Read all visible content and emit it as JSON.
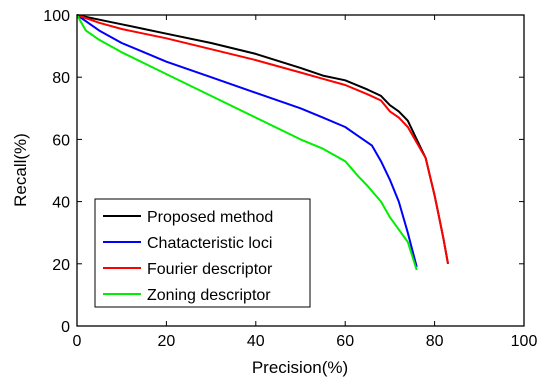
{
  "chart_data": {
    "type": "line",
    "title": "",
    "xlabel": "Precision(%)",
    "ylabel": "Recall(%)",
    "xlim": [
      0,
      100
    ],
    "ylim": [
      0,
      100
    ],
    "xticks": [
      "0",
      "20",
      "40",
      "60",
      "80",
      "100"
    ],
    "yticks": [
      "0",
      "20",
      "40",
      "60",
      "80",
      "100"
    ],
    "grid": false,
    "legend": "bottom-left",
    "series": [
      {
        "name": "Proposed method",
        "color": "#000000",
        "x": [
          0,
          5,
          10,
          15,
          20,
          30,
          40,
          50,
          55,
          60,
          65,
          68,
          70,
          72,
          74,
          76,
          78,
          79,
          80,
          81,
          82,
          83
        ],
        "y": [
          100,
          98.5,
          97,
          95.5,
          94,
          91,
          87.5,
          83,
          80.5,
          79,
          76,
          74,
          71,
          69,
          66,
          60,
          54,
          48,
          42,
          35,
          28,
          20
        ]
      },
      {
        "name": "Chatacteristic loci",
        "color": "#0000ff",
        "x": [
          0,
          5,
          10,
          15,
          20,
          30,
          40,
          50,
          55,
          60,
          63,
          66,
          68,
          70,
          72,
          74,
          76
        ],
        "y": [
          100,
          95,
          91,
          88,
          85,
          80,
          75,
          70,
          67,
          64,
          61,
          58,
          53,
          47,
          40,
          30,
          19
        ]
      },
      {
        "name": "Fourier descriptor",
        "color": "#ff0000",
        "x": [
          0,
          5,
          10,
          15,
          20,
          30,
          40,
          50,
          55,
          60,
          65,
          68,
          70,
          72,
          74,
          76,
          78,
          79,
          80,
          81,
          82,
          83
        ],
        "y": [
          100,
          97.5,
          95.5,
          94,
          92.5,
          89,
          85.5,
          81.5,
          79.5,
          77.5,
          74.5,
          72.5,
          69,
          67,
          64,
          59,
          54,
          48,
          42,
          35,
          28,
          20
        ]
      },
      {
        "name": "Zoning descriptor",
        "color": "#00ee00",
        "x": [
          0,
          2,
          5,
          10,
          20,
          30,
          40,
          50,
          55,
          60,
          63,
          65,
          68,
          70,
          72,
          74,
          76
        ],
        "y": [
          100,
          95,
          92,
          88,
          81,
          74,
          67,
          60,
          57,
          53,
          48,
          45,
          40,
          35,
          31,
          27,
          18
        ]
      }
    ]
  }
}
